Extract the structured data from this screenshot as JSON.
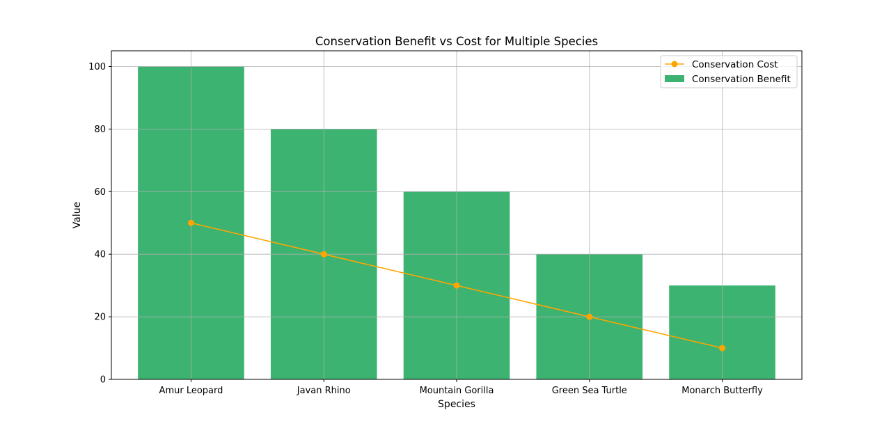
{
  "chart_data": {
    "type": "bar",
    "title": "Conservation Benefit vs Cost for Multiple Species",
    "xlabel": "Species",
    "ylabel": "Value",
    "categories": [
      "Amur Leopard",
      "Javan Rhino",
      "Mountain Gorilla",
      "Green Sea Turtle",
      "Monarch Butterfly"
    ],
    "ylim": [
      0,
      105
    ],
    "yticks": [
      0,
      20,
      40,
      60,
      80,
      100
    ],
    "grid": true,
    "legend_position": "top-right",
    "series": [
      {
        "name": "Conservation Benefit",
        "kind": "bar",
        "color": "#3cb371",
        "values": [
          100,
          80,
          60,
          40,
          30
        ]
      },
      {
        "name": "Conservation Cost",
        "kind": "line",
        "marker": "circle",
        "color": "#ffa500",
        "values": [
          50,
          40,
          30,
          20,
          10
        ]
      }
    ]
  }
}
